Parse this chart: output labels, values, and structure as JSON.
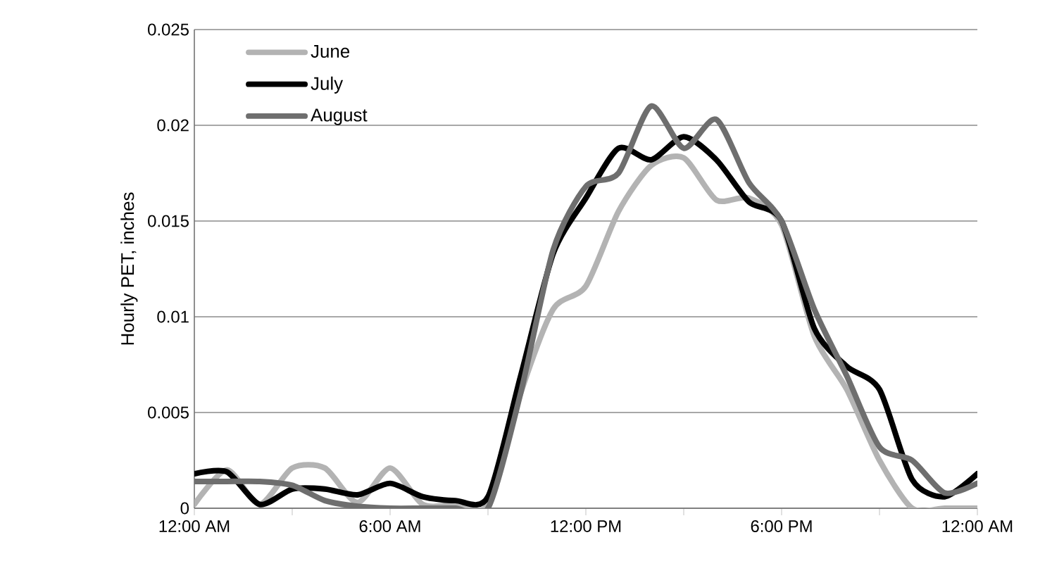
{
  "chart_data": {
    "type": "line",
    "ylabel": "Hourly PET, inches",
    "x": [
      0,
      1,
      2,
      3,
      4,
      5,
      6,
      7,
      8,
      9,
      10,
      11,
      12,
      13,
      14,
      15,
      16,
      17,
      18,
      19,
      20,
      21,
      22,
      23,
      24
    ],
    "xlim": [
      0,
      24
    ],
    "xticks": [
      {
        "value": 0,
        "label": "12:00 AM"
      },
      {
        "value": 3,
        "label": null
      },
      {
        "value": 6,
        "label": "6:00 AM"
      },
      {
        "value": 9,
        "label": null
      },
      {
        "value": 12,
        "label": "12:00 PM"
      },
      {
        "value": 15,
        "label": null
      },
      {
        "value": 18,
        "label": "6:00 PM"
      },
      {
        "value": 21,
        "label": null
      },
      {
        "value": 24,
        "label": "12:00 AM"
      }
    ],
    "ylim": [
      0,
      0.025
    ],
    "yticks": [
      0,
      0.005,
      0.01,
      0.015,
      0.02,
      0.025
    ],
    "grid": "y",
    "legend": "top left",
    "marker": "none",
    "line_style": "solid",
    "series": [
      {
        "name": "June",
        "color": "#b3b3b3",
        "values": [
          0.0002,
          0.002,
          0.0002,
          0.0021,
          0.0021,
          0.0003,
          0.0021,
          0.0002,
          0.0002,
          0.0002,
          0.006,
          0.0104,
          0.0116,
          0.0155,
          0.0179,
          0.0183,
          0.0161,
          0.0162,
          0.0148,
          0.009,
          0.0062,
          0.0025,
          0,
          0,
          0
        ]
      },
      {
        "name": "July",
        "color": "#000000",
        "values": [
          0.0018,
          0.0019,
          0.0002,
          0.001,
          0.001,
          0.0007,
          0.0013,
          0.0006,
          0.0004,
          0.0006,
          0.0069,
          0.0133,
          0.0162,
          0.0188,
          0.0182,
          0.0194,
          0.0182,
          0.016,
          0.015,
          0.0094,
          0.0074,
          0.0062,
          0.0015,
          0.0006,
          0.0018
        ]
      },
      {
        "name": "August",
        "color": "#6e6e6e",
        "values": [
          0.0014,
          0.0014,
          0.0014,
          0.0012,
          0.0004,
          0.0001,
          0,
          0,
          0,
          0,
          0.006,
          0.0135,
          0.0168,
          0.0175,
          0.021,
          0.0188,
          0.0203,
          0.017,
          0.015,
          0.0104,
          0.0069,
          0.0032,
          0.0025,
          0.0008,
          0.0013
        ]
      }
    ]
  }
}
